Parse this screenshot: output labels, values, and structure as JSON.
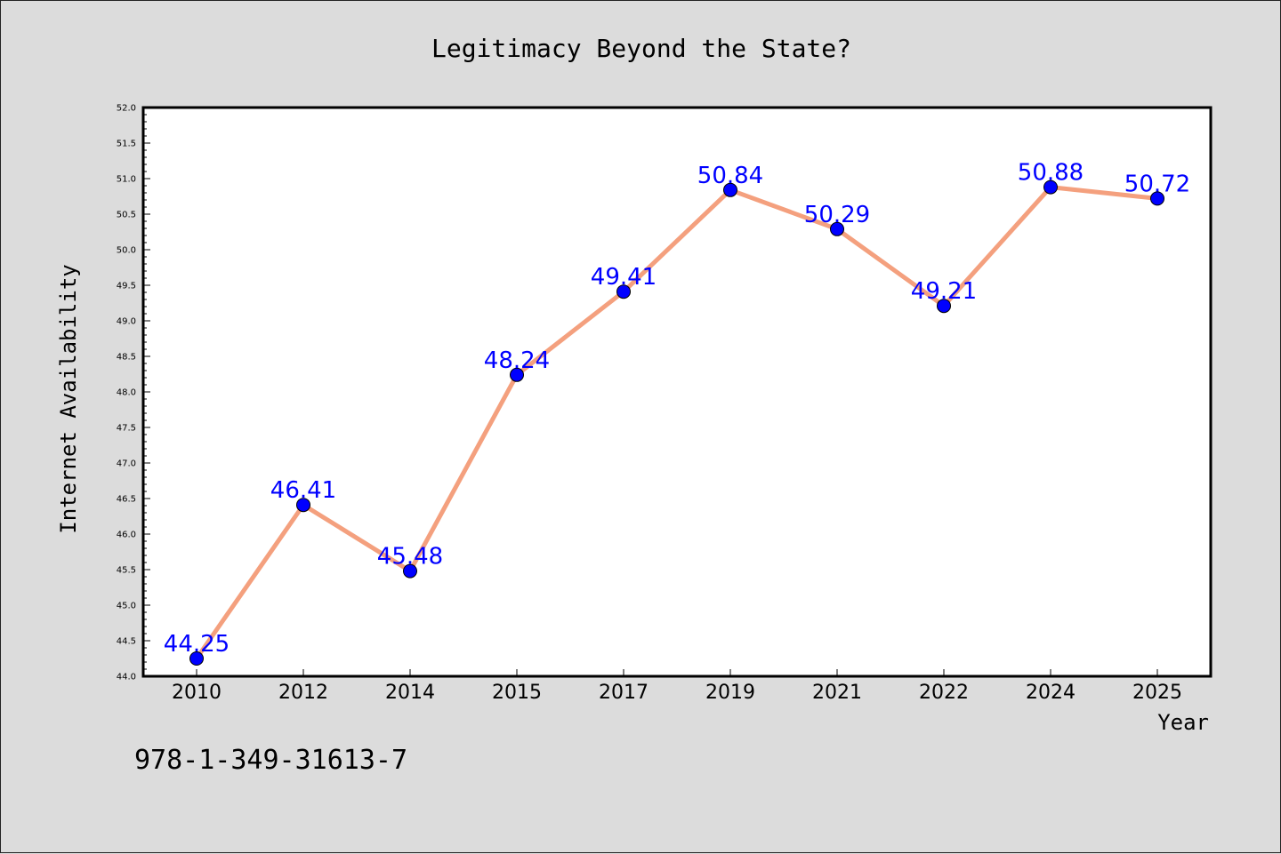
{
  "chart_data": {
    "type": "line",
    "title": "Legitimacy Beyond the State?",
    "xlabel": "Year",
    "ylabel": "Internet Availability",
    "categories": [
      "2010",
      "2012",
      "2014",
      "2015",
      "2017",
      "2019",
      "2021",
      "2022",
      "2024",
      "2025"
    ],
    "series": [
      {
        "values": [
          44.25,
          46.41,
          45.48,
          48.24,
          49.41,
          50.84,
          50.29,
          49.21,
          50.88,
          50.72
        ],
        "line_color": "#f4a07e",
        "marker_color": "#0000ff"
      }
    ],
    "data_labels": [
      "44.25",
      "46.41",
      "45.48",
      "48.24",
      "49.41",
      "50.84",
      "50.29",
      "49.21",
      "50.88",
      "50.72"
    ],
    "ylim": [
      44.0,
      52.0
    ],
    "yticks": [
      "44.0",
      "44.5",
      "45.0",
      "45.5",
      "46.0",
      "46.5",
      "47.0",
      "47.5",
      "48.0",
      "48.5",
      "49.0",
      "49.5",
      "50.0",
      "50.5",
      "51.0",
      "51.5",
      "52.0"
    ],
    "grid": false,
    "legend": "none",
    "label_color": "#0000ff"
  },
  "footer_text": "978-1-349-31613-7"
}
